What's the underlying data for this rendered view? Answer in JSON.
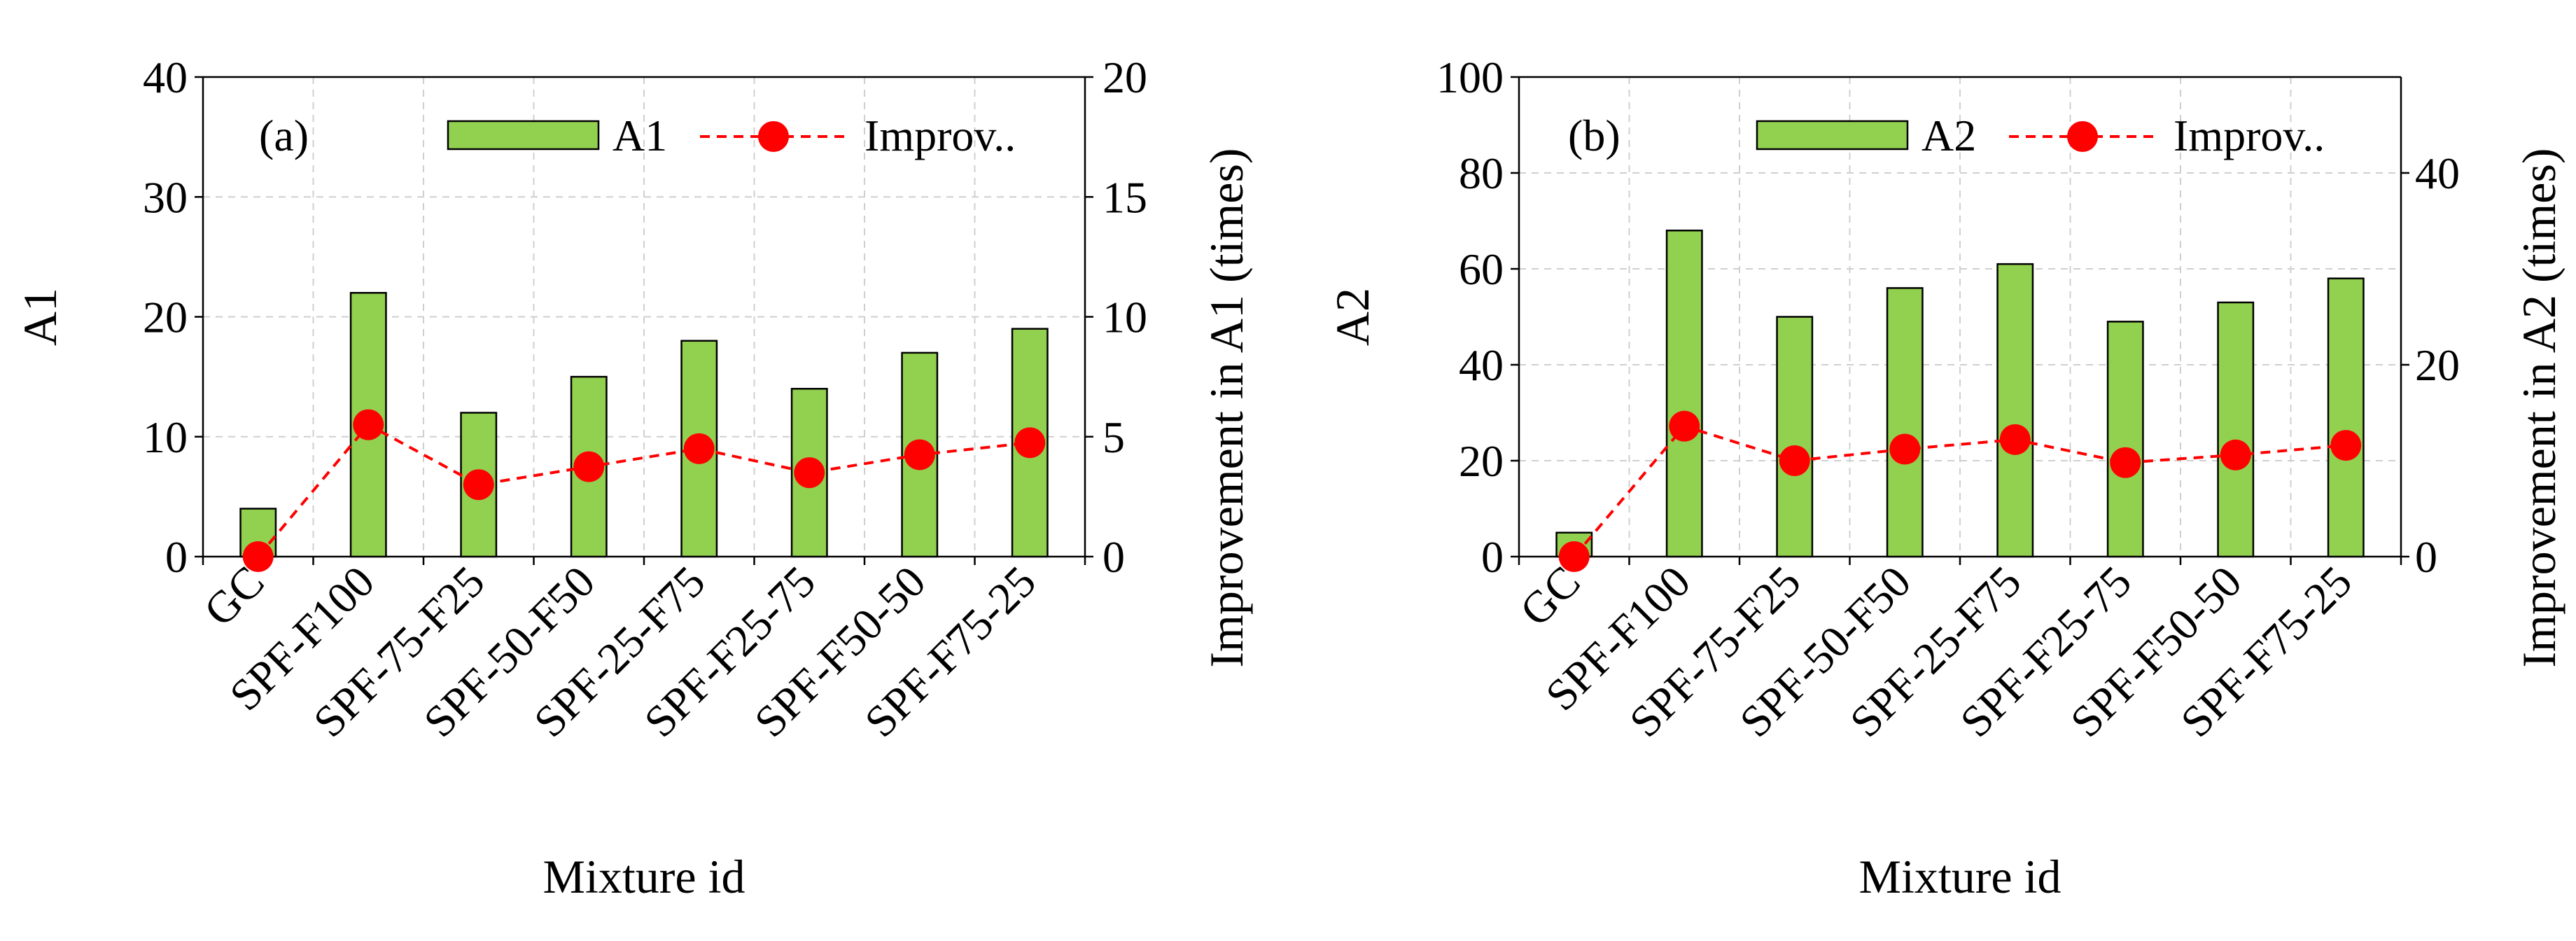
{
  "colors": {
    "bar_fill": "#92d050",
    "improvement": "#ff0000"
  },
  "chart_data": [
    {
      "type": "bar",
      "panel_tag": "(a)",
      "categories": [
        "GC",
        "SPF-F100",
        "SPF-75-F25",
        "SPF-50-F50",
        "SPF-25-F75",
        "SPF-F25-75",
        "SPF-F50-50",
        "SPF-F75-25"
      ],
      "xlabel": "Mixture id",
      "ylabel": "A1",
      "y2label": "Improvement in A1 (times)",
      "ylim": [
        0,
        40
      ],
      "yticks": [
        0,
        10,
        20,
        30,
        40
      ],
      "y2lim": [
        0,
        20
      ],
      "y2ticks": [
        0,
        5,
        10,
        15,
        20
      ],
      "grid": true,
      "legend_position": "top",
      "series": [
        {
          "name": "A1",
          "type": "bar",
          "axis": "left",
          "values": [
            4,
            22,
            12,
            15,
            18,
            14,
            17,
            19
          ]
        },
        {
          "name": "Improv..",
          "type": "line",
          "axis": "right",
          "marker": "circle",
          "line_style": "dashed",
          "values": [
            0,
            5.5,
            3.0,
            3.75,
            4.5,
            3.5,
            4.25,
            4.75
          ]
        }
      ]
    },
    {
      "type": "bar",
      "panel_tag": "(b)",
      "categories": [
        "GC",
        "SPF-F100",
        "SPF-75-F25",
        "SPF-50-F50",
        "SPF-25-F75",
        "SPF-F25-75",
        "SPF-F50-50",
        "SPF-F75-25"
      ],
      "xlabel": "Mixture id",
      "ylabel": "A2",
      "y2label": "Improvement in A2 (times)",
      "ylim": [
        0,
        100
      ],
      "yticks": [
        0,
        20,
        40,
        60,
        80,
        100
      ],
      "y2lim": [
        0,
        50
      ],
      "y2ticks": [
        0,
        20,
        40
      ],
      "grid": true,
      "legend_position": "top",
      "series": [
        {
          "name": "A2",
          "type": "bar",
          "axis": "left",
          "values": [
            5,
            68,
            50,
            56,
            61,
            49,
            53,
            58
          ]
        },
        {
          "name": "Improv..",
          "type": "line",
          "axis": "right",
          "marker": "circle",
          "line_style": "dashed",
          "values": [
            0,
            13.6,
            10.0,
            11.2,
            12.2,
            9.8,
            10.6,
            11.6
          ]
        }
      ]
    }
  ]
}
